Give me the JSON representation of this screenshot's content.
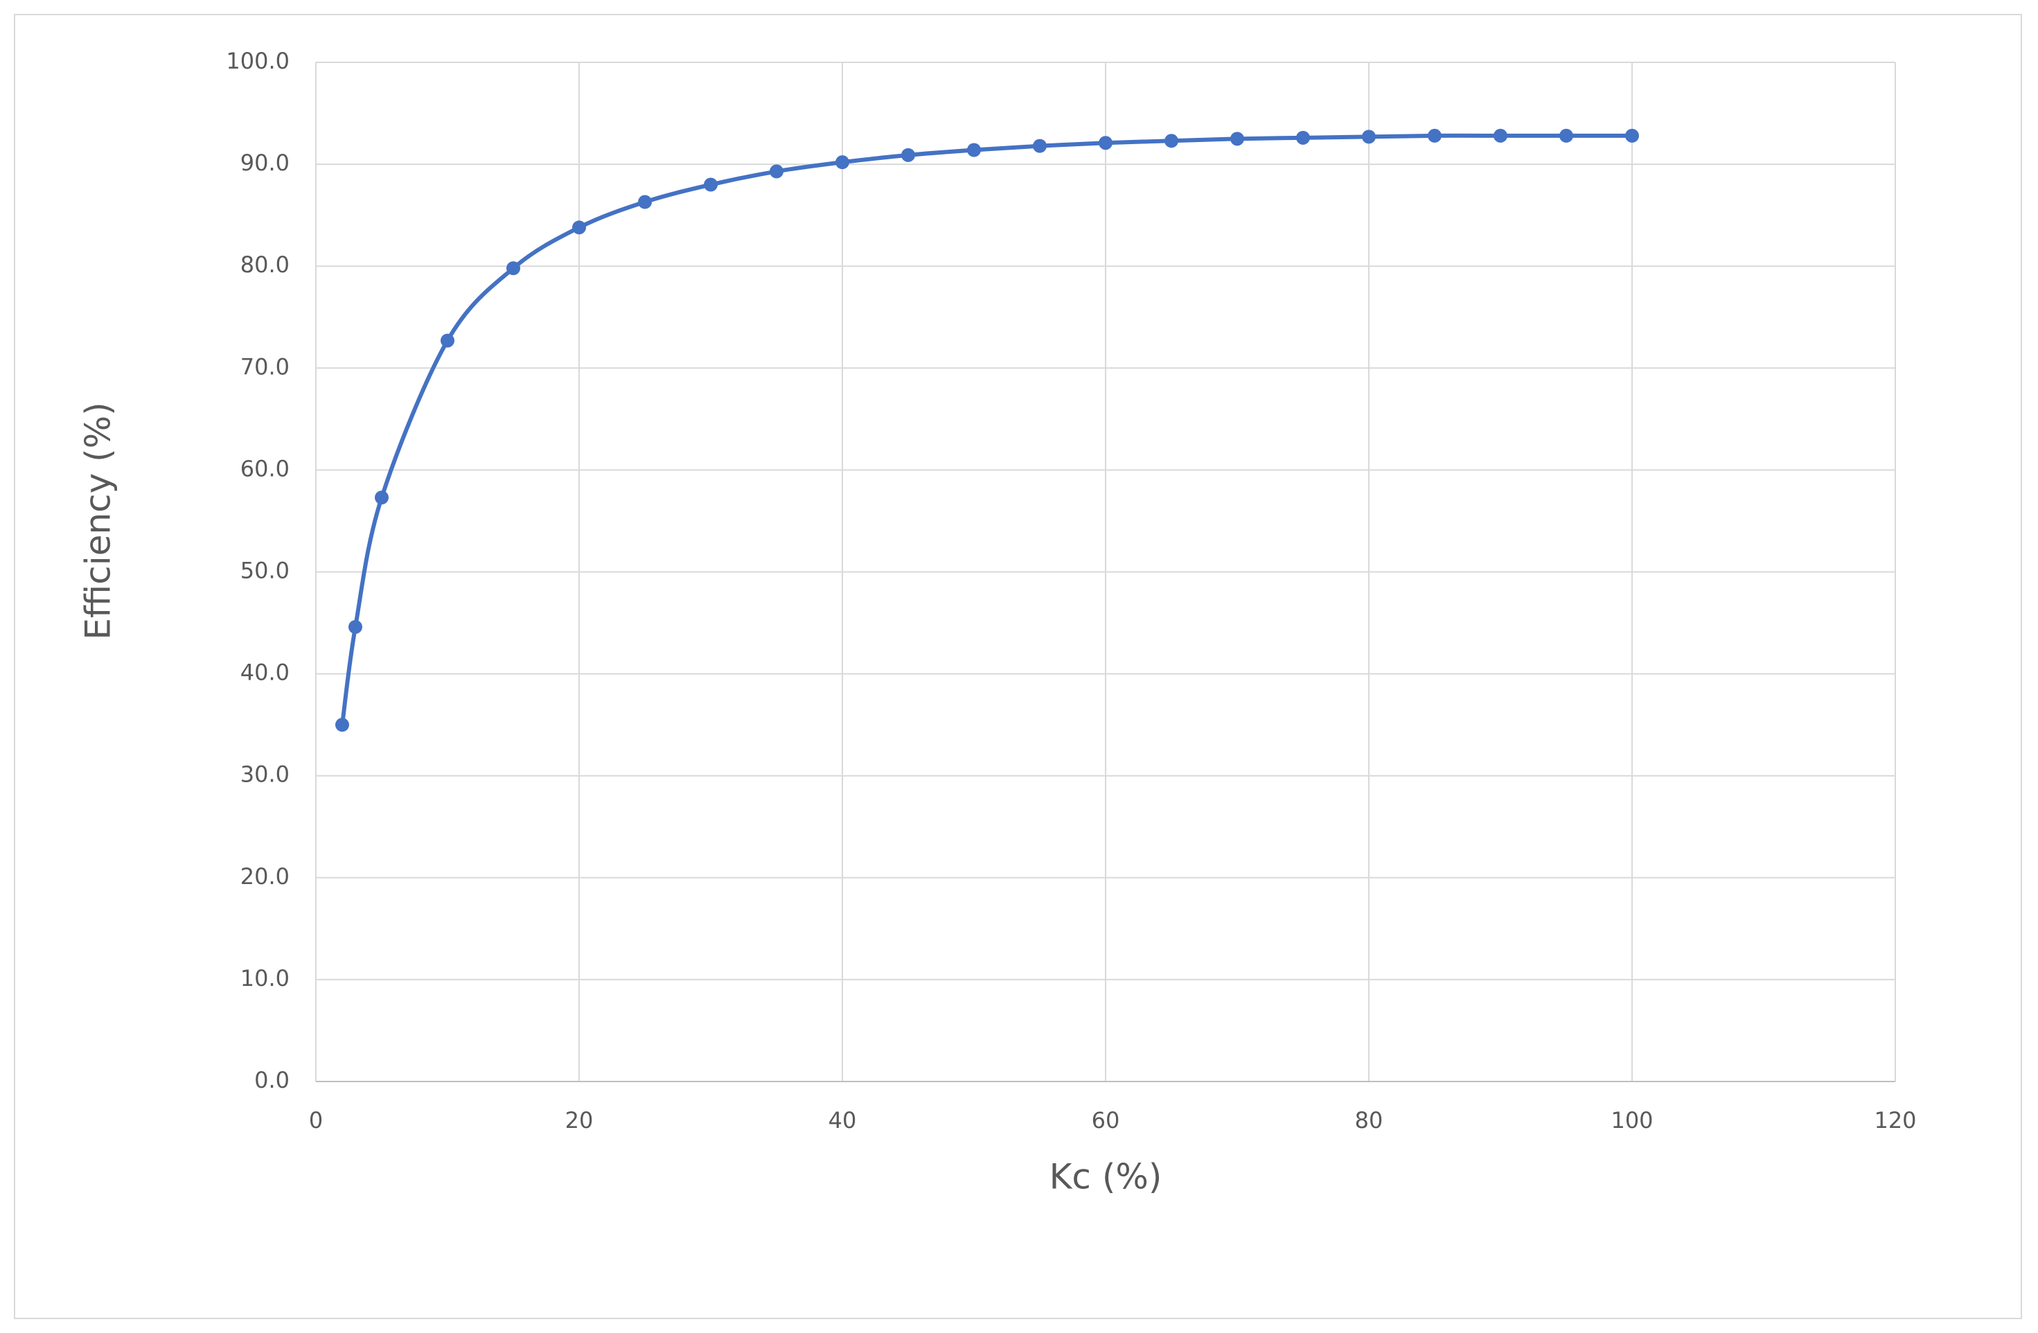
{
  "chart_data": {
    "type": "line",
    "x_label": "Kc (%)",
    "y_label": "Efficiency (%)",
    "x": [
      2,
      3,
      5,
      10,
      15,
      20,
      25,
      30,
      35,
      40,
      45,
      50,
      55,
      60,
      65,
      70,
      75,
      80,
      85,
      90,
      95,
      100
    ],
    "series": [
      {
        "name": "Efficiency",
        "color": "#4472c4",
        "values": [
          35.0,
          44.6,
          57.3,
          72.7,
          79.8,
          83.8,
          86.3,
          88.0,
          89.3,
          90.2,
          90.9,
          91.4,
          91.8,
          92.1,
          92.3,
          92.5,
          92.6,
          92.7,
          92.8,
          92.8,
          92.8,
          92.8
        ]
      }
    ],
    "xlim": [
      0,
      120
    ],
    "xticks": [
      0,
      20,
      40,
      60,
      80,
      100,
      120
    ],
    "ylim": [
      0,
      100
    ],
    "yticks": [
      {
        "value": 0,
        "label": "0.0"
      },
      {
        "value": 10,
        "label": "10.0"
      },
      {
        "value": 20,
        "label": "20.0"
      },
      {
        "value": 30,
        "label": "30.0"
      },
      {
        "value": 40,
        "label": "40.0"
      },
      {
        "value": 50,
        "label": "50.0"
      },
      {
        "value": 60,
        "label": "60.0"
      },
      {
        "value": 70,
        "label": "70.0"
      },
      {
        "value": 80,
        "label": "80.0"
      },
      {
        "value": 90,
        "label": "90.0"
      },
      {
        "value": 100,
        "label": "100.0"
      }
    ],
    "grid": true
  }
}
